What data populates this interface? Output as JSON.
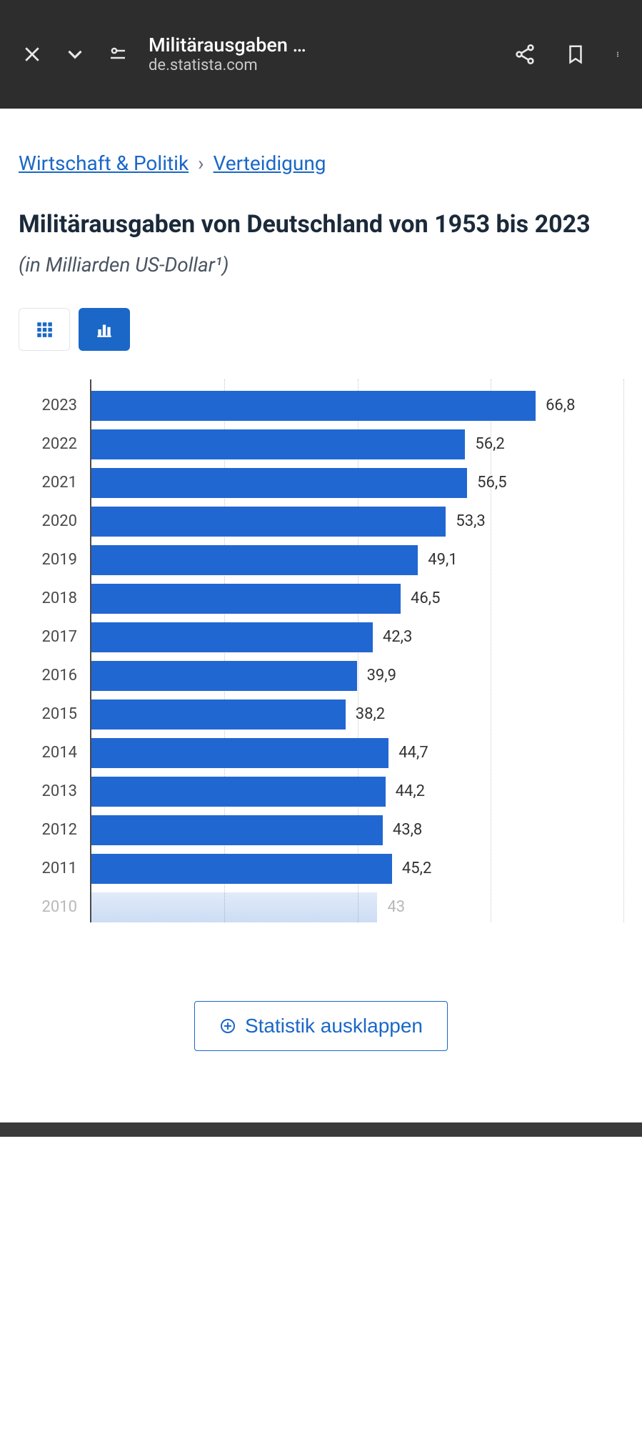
{
  "browser": {
    "title": "Militärausgaben …",
    "domain": "de.statista.com"
  },
  "breadcrumb": {
    "item1": "Wirtschaft & Politik",
    "item2": "Verteidigung",
    "sep": "›"
  },
  "page": {
    "title": "Militärausgaben von Deutschland von 1953 bis 2023",
    "subtitle": "(in Milliarden US-Dollar¹)"
  },
  "chart": {
    "type": "horizontal-bar",
    "bar_color": "#2167d2",
    "axis_color": "#4a4a4a",
    "grid_color": "#c7c7c7",
    "background": "#ffffff",
    "label_fontsize": 22,
    "value_fontsize": 22,
    "xmax": 80,
    "grid_ticks": [
      20,
      40,
      60,
      80
    ],
    "rows": [
      {
        "year": "2023",
        "value": 66.8,
        "display": "66,8"
      },
      {
        "year": "2022",
        "value": 56.2,
        "display": "56,2"
      },
      {
        "year": "2021",
        "value": 56.5,
        "display": "56,5"
      },
      {
        "year": "2020",
        "value": 53.3,
        "display": "53,3"
      },
      {
        "year": "2019",
        "value": 49.1,
        "display": "49,1"
      },
      {
        "year": "2018",
        "value": 46.5,
        "display": "46,5"
      },
      {
        "year": "2017",
        "value": 42.3,
        "display": "42,3"
      },
      {
        "year": "2016",
        "value": 39.9,
        "display": "39,9"
      },
      {
        "year": "2015",
        "value": 38.2,
        "display": "38,2"
      },
      {
        "year": "2014",
        "value": 44.7,
        "display": "44,7"
      },
      {
        "year": "2013",
        "value": 44.2,
        "display": "44,2"
      },
      {
        "year": "2012",
        "value": 43.8,
        "display": "43,8"
      },
      {
        "year": "2011",
        "value": 45.2,
        "display": "45,2"
      },
      {
        "year": "2010",
        "value": 43.0,
        "display": "43",
        "faded": true
      }
    ]
  },
  "expand_label": "Statistik ausklappen"
}
